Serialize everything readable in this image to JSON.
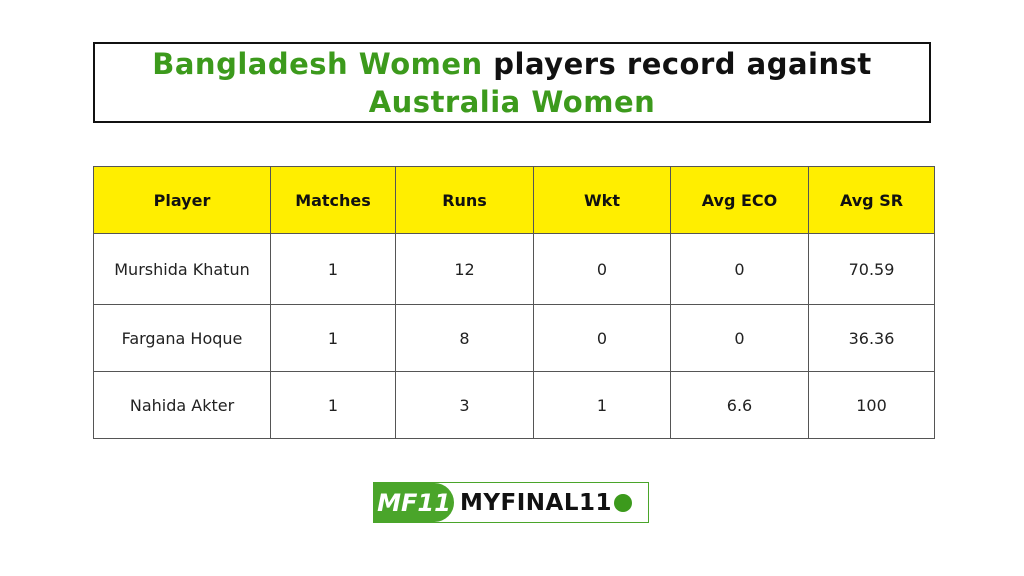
{
  "title": {
    "highlight1": "Bangladesh Women",
    "middle": " players record against",
    "highlight2": "Australia Women"
  },
  "colors": {
    "accent": "#3c9a1c",
    "header_bg": "#ffee00"
  },
  "table": {
    "headers": [
      "Player",
      "Matches",
      "Runs",
      "Wkt",
      "Avg ECO",
      "Avg SR"
    ],
    "rows": [
      [
        "Murshida Khatun",
        "1",
        "12",
        "0",
        "0",
        "70.59"
      ],
      [
        "Fargana Hoque",
        "1",
        "8",
        "0",
        "0",
        "36.36"
      ],
      [
        "Nahida Akter",
        "1",
        "3",
        "1",
        "6.6",
        "100"
      ]
    ]
  },
  "logo": {
    "mark": "MF11",
    "text": "MYFINAL11",
    "icon": "cricket-ball-icon"
  }
}
